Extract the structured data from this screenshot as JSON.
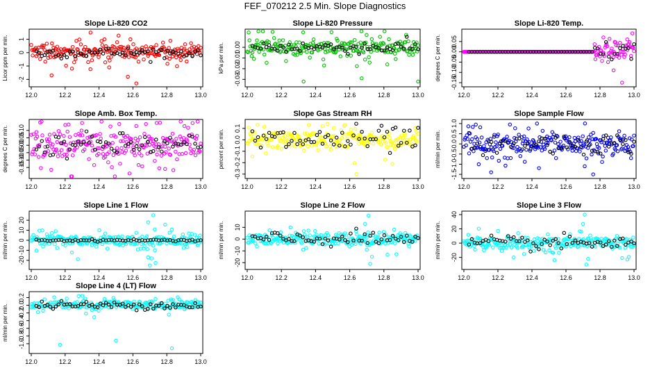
{
  "title": "FEF_070212  2.5 Min. Slope Diagnostics",
  "chart_data": [
    {
      "type": "scatter",
      "title": "Slope Li-820 CO2",
      "ylabel": "Licor ppm per min.",
      "xlim": [
        12.0,
        13.0
      ],
      "xticks": [
        "12.0",
        "12.2",
        "12.4",
        "12.6",
        "12.8",
        "13.0"
      ],
      "ylim": [
        -2.4,
        1.6
      ],
      "yticks": [
        1,
        0,
        -1,
        -2
      ],
      "ytick_labels": [
        "1",
        "0",
        "-1",
        "-2"
      ],
      "color": "#ff0000",
      "band": [
        -0.35,
        0.45
      ],
      "scatter": 0.6,
      "overlay_spread": 0.2,
      "outliers": [
        [
          12.35,
          1.5
        ],
        [
          12.12,
          -1.7
        ],
        [
          12.57,
          -1.8
        ],
        [
          12.62,
          -2.3
        ],
        [
          12.46,
          -1.1
        ]
      ]
    },
    {
      "type": "scatter",
      "title": "Slope Li-820 Pressure",
      "ylabel": "kPa per min.",
      "xlim": [
        12.0,
        13.0
      ],
      "xticks": [
        "12.0",
        "12.2",
        "12.4",
        "12.6",
        "12.8",
        "13.0"
      ],
      "ylim": [
        -0.035,
        0.015
      ],
      "yticks": [
        0.0,
        -0.01,
        -0.02,
        -0.03
      ],
      "ytick_labels": [
        "0.00",
        "-0.01",
        "-0.02",
        "-0.03"
      ],
      "color": "#00c000",
      "band": [
        -0.005,
        0.005
      ],
      "scatter": 0.008,
      "overlay_spread": 0.003,
      "outliers": [
        [
          12.33,
          -0.032
        ],
        [
          12.67,
          -0.029
        ],
        [
          13.0,
          -0.032
        ],
        [
          12.82,
          -0.016
        ],
        [
          12.45,
          -0.017
        ]
      ]
    },
    {
      "type": "scatter",
      "title": "Slope Li-820 Temp.",
      "ylabel": "degrees C per min.",
      "xlim": [
        12.0,
        13.0
      ],
      "xticks": [
        "12.0",
        "12.2",
        "12.4",
        "12.6",
        "12.8",
        "13.0"
      ],
      "ylim": [
        -0.16,
        0.1
      ],
      "yticks": [
        0.05,
        0.0,
        -0.05,
        -0.1,
        -0.15
      ],
      "ytick_labels": [
        "0.05",
        "0.00",
        "-0.05",
        "-0.10",
        "-0.15"
      ],
      "color": "#ff00ff",
      "band": [
        -0.005,
        0.005
      ],
      "scatter": 0.0,
      "overlay_spread": 0.0,
      "outliers": [
        [
          12.93,
          -0.15
        ],
        [
          12.99,
          0.09
        ],
        [
          12.88,
          -0.09
        ],
        [
          12.96,
          0.06
        ],
        [
          12.82,
          0.07
        ]
      ]
    },
    {
      "type": "scatter",
      "title": "Slope Amb. Box Temp.",
      "ylabel": "degrees C per min.",
      "xlim": [
        12.0,
        13.0
      ],
      "xticks": [
        "12.0",
        "12.2",
        "12.4",
        "12.6",
        "12.8",
        "13.0"
      ],
      "ylim": [
        -0.21,
        0.16
      ],
      "yticks": [
        0.1,
        0.05,
        0.0,
        -0.05,
        -0.1,
        -0.15
      ],
      "ytick_labels": [
        "0.10",
        "0.05",
        "0.00",
        "-0.05",
        "-0.10",
        "-0.15"
      ],
      "color": "#ff00ff",
      "band": [
        -0.07,
        0.08
      ],
      "scatter": 0.1,
      "overlay_spread": 0.04,
      "outliers": [
        [
          12.58,
          -0.19
        ],
        [
          12.74,
          0.15
        ],
        [
          12.3,
          0.15
        ],
        [
          12.79,
          -0.16
        ],
        [
          12.22,
          0.14
        ]
      ]
    },
    {
      "type": "scatter",
      "title": "Slope Gas Stream RH",
      "ylabel": "percent per min.",
      "xlim": [
        12.0,
        13.0
      ],
      "xticks": [
        "12.0",
        "12.2",
        "12.4",
        "12.6",
        "12.8",
        "13.0"
      ],
      "ylim": [
        -0.32,
        0.16
      ],
      "yticks": [
        0.1,
        0.0,
        -0.1,
        -0.2,
        -0.3
      ],
      "ytick_labels": [
        "0.1",
        "0.0",
        "-0.1",
        "-0.2",
        "-0.3"
      ],
      "color": "#ffff00",
      "band": [
        -0.06,
        0.06
      ],
      "scatter": 0.07,
      "overlay_spread": 0.06,
      "outliers": [
        [
          12.64,
          -0.3
        ],
        [
          12.47,
          0.14
        ],
        [
          12.36,
          0.13
        ],
        [
          12.85,
          -0.21
        ],
        [
          12.44,
          0.12
        ]
      ]
    },
    {
      "type": "scatter",
      "title": "Slope Sample Flow",
      "ylabel": "ml/min per min.",
      "xlim": [
        12.0,
        13.0
      ],
      "xticks": [
        "12.0",
        "12.2",
        "12.4",
        "12.6",
        "12.8",
        "13.0"
      ],
      "ylim": [
        -1.6,
        1.1
      ],
      "yticks": [
        1.0,
        0.5,
        0.0,
        -0.5,
        -1.0,
        -1.5
      ],
      "ytick_labels": [
        "1.0",
        "0.5",
        "0.0",
        "-0.5",
        "-1.0",
        "-1.5"
      ],
      "color": "#0000ff",
      "band": [
        -0.4,
        0.4
      ],
      "scatter": 0.55,
      "overlay_spread": 0.25,
      "outliers": [
        [
          12.76,
          -1.5
        ],
        [
          12.16,
          -1.4
        ],
        [
          12.43,
          1.0
        ],
        [
          12.07,
          0.95
        ],
        [
          12.71,
          -1.1
        ]
      ]
    },
    {
      "type": "scatter",
      "title": "Slope Line 1 Flow",
      "ylabel": "ml/min per min.",
      "xlim": [
        12.0,
        13.0
      ],
      "xticks": [
        "12.0",
        "12.2",
        "12.4",
        "12.6",
        "12.8",
        "13.0"
      ],
      "ylim": [
        -27,
        27
      ],
      "yticks": [
        20,
        10,
        0,
        -10,
        -20
      ],
      "ytick_labels": [
        "20",
        "10",
        "0",
        "-10",
        "-20"
      ],
      "color": "#00ffff",
      "band": [
        -4,
        4
      ],
      "scatter": 6,
      "overlay_spread": 0.5,
      "outliers": [
        [
          12.72,
          25
        ],
        [
          12.7,
          -25
        ],
        [
          12.71,
          -18
        ],
        [
          12.69,
          18
        ],
        [
          12.73,
          -10
        ]
      ]
    },
    {
      "type": "scatter",
      "title": "Slope Line 2 Flow",
      "ylabel": "ml/min per min.",
      "xlim": [
        12.0,
        13.0
      ],
      "xticks": [
        "12.0",
        "12.2",
        "12.4",
        "12.6",
        "12.8",
        "13.0"
      ],
      "ylim": [
        -24,
        22
      ],
      "yticks": [
        10,
        0,
        -10,
        -20
      ],
      "ytick_labels": [
        "10",
        "0",
        "-10",
        "-20"
      ],
      "color": "#00ffff",
      "band": [
        -4,
        4
      ],
      "scatter": 5,
      "overlay_spread": 3,
      "outliers": [
        [
          12.71,
          20
        ],
        [
          12.72,
          -21
        ],
        [
          12.69,
          13
        ],
        [
          12.73,
          -15
        ],
        [
          12.7,
          -9
        ]
      ]
    },
    {
      "type": "scatter",
      "title": "Slope Line 3 Flow",
      "ylabel": "ml/min per min.",
      "xlim": [
        12.0,
        13.0
      ],
      "xticks": [
        "12.0",
        "12.2",
        "12.4",
        "12.6",
        "12.8",
        "13.0"
      ],
      "ylim": [
        -34,
        42
      ],
      "yticks": [
        40,
        20,
        0,
        -20
      ],
      "ytick_labels": [
        "40",
        "20",
        "0",
        "-20"
      ],
      "color": "#00ffff",
      "band": [
        -7,
        7
      ],
      "scatter": 9,
      "overlay_spread": 5,
      "outliers": [
        [
          12.71,
          40
        ],
        [
          12.72,
          -30
        ],
        [
          12.7,
          27
        ],
        [
          12.73,
          -22
        ],
        [
          12.69,
          16
        ]
      ]
    },
    {
      "type": "scatter",
      "title": "Slope Line 4 (LT) Flow",
      "ylabel": "ml/min per min.",
      "xlim": [
        12.0,
        13.0
      ],
      "xticks": [
        "12.0",
        "12.2",
        "12.4",
        "12.6",
        "12.8",
        "13.0"
      ],
      "ylim": [
        -1.2,
        0.3
      ],
      "yticks": [
        0.2,
        0.0,
        -0.2,
        -0.4,
        -0.6,
        -0.8,
        -1.0
      ],
      "ytick_labels": [
        "0.2",
        "0.0",
        "-0.2",
        "-0.4",
        "-0.6",
        "-0.8",
        "-1.0"
      ],
      "color": "#00ffff",
      "band": [
        -0.06,
        0.1
      ],
      "scatter": 0.12,
      "overlay_spread": 0.05,
      "outliers": [
        [
          12.17,
          -1.03
        ],
        [
          12.5,
          -0.92
        ],
        [
          12.83,
          -1.12
        ]
      ]
    }
  ]
}
